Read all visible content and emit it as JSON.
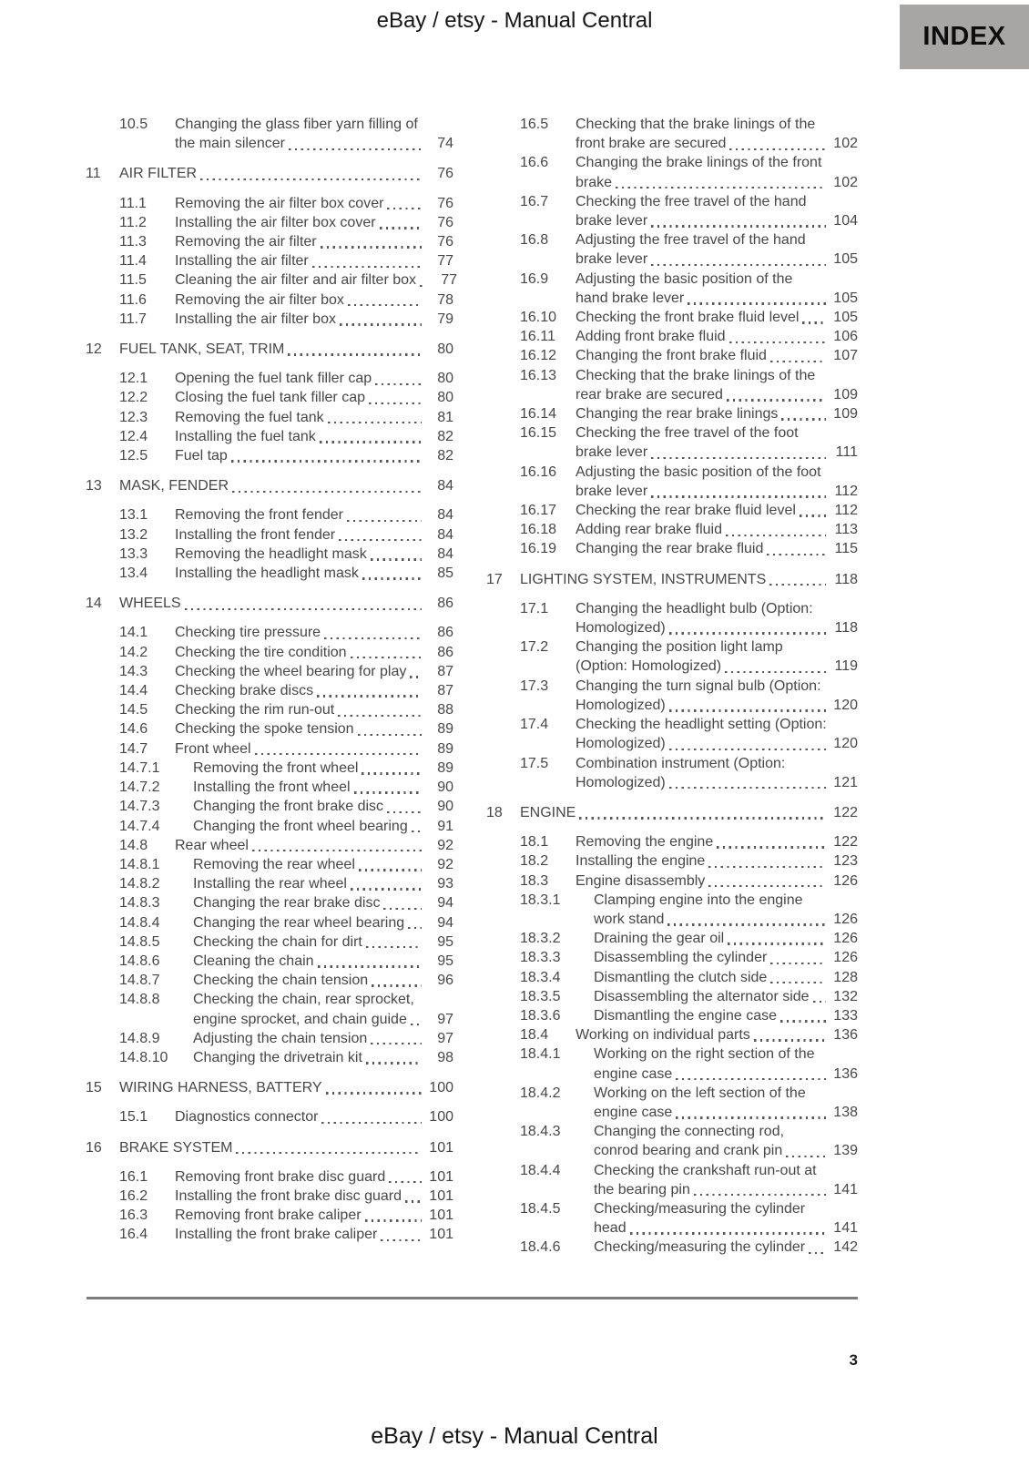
{
  "header": {
    "title": "eBay / etsy - Manual Central",
    "index_label": "INDEX"
  },
  "footer": {
    "page_number": "3",
    "title": "eBay / etsy - Manual Central"
  },
  "colors": {
    "index_tab_bg": "#a8a6a4",
    "body_text": "#474747",
    "divider": "#7d7d7d"
  },
  "toc": {
    "left": [
      {
        "num": "10.5",
        "level": 2,
        "lines": [
          "Changing the glass fiber yarn filling of",
          "the main silencer"
        ],
        "page": "74"
      },
      {
        "num": "11",
        "level": 1,
        "lines": [
          "AIR FILTER"
        ],
        "page": "76"
      },
      {
        "num": "11.1",
        "level": 2,
        "lines": [
          "Removing the air filter box cover"
        ],
        "page": "76"
      },
      {
        "num": "11.2",
        "level": 2,
        "lines": [
          "Installing the air filter box cover"
        ],
        "page": "76"
      },
      {
        "num": "11.3",
        "level": 2,
        "lines": [
          "Removing the air filter"
        ],
        "page": "76"
      },
      {
        "num": "11.4",
        "level": 2,
        "lines": [
          "Installing the air filter"
        ],
        "page": "77"
      },
      {
        "num": "11.5",
        "level": 2,
        "lines": [
          "Cleaning the air filter and air filter box"
        ],
        "page": "77"
      },
      {
        "num": "11.6",
        "level": 2,
        "lines": [
          "Removing the air filter box"
        ],
        "page": "78"
      },
      {
        "num": "11.7",
        "level": 2,
        "lines": [
          "Installing the air filter box"
        ],
        "page": "79"
      },
      {
        "num": "12",
        "level": 1,
        "lines": [
          "FUEL TANK, SEAT, TRIM"
        ],
        "page": "80"
      },
      {
        "num": "12.1",
        "level": 2,
        "lines": [
          "Opening the fuel tank filler cap"
        ],
        "page": "80"
      },
      {
        "num": "12.2",
        "level": 2,
        "lines": [
          "Closing the fuel tank filler cap"
        ],
        "page": "80"
      },
      {
        "num": "12.3",
        "level": 2,
        "lines": [
          "Removing the fuel tank"
        ],
        "page": "81"
      },
      {
        "num": "12.4",
        "level": 2,
        "lines": [
          "Installing the fuel tank"
        ],
        "page": "82"
      },
      {
        "num": "12.5",
        "level": 2,
        "lines": [
          "Fuel tap"
        ],
        "page": "82"
      },
      {
        "num": "13",
        "level": 1,
        "lines": [
          "MASK, FENDER"
        ],
        "page": "84"
      },
      {
        "num": "13.1",
        "level": 2,
        "lines": [
          "Removing the front fender"
        ],
        "page": "84"
      },
      {
        "num": "13.2",
        "level": 2,
        "lines": [
          "Installing the front fender"
        ],
        "page": "84"
      },
      {
        "num": "13.3",
        "level": 2,
        "lines": [
          "Removing the headlight mask"
        ],
        "page": "84"
      },
      {
        "num": "13.4",
        "level": 2,
        "lines": [
          "Installing the headlight mask"
        ],
        "page": "85"
      },
      {
        "num": "14",
        "level": 1,
        "lines": [
          "WHEELS"
        ],
        "page": "86"
      },
      {
        "num": "14.1",
        "level": 2,
        "lines": [
          "Checking tire pressure"
        ],
        "page": "86"
      },
      {
        "num": "14.2",
        "level": 2,
        "lines": [
          "Checking the tire condition"
        ],
        "page": "86"
      },
      {
        "num": "14.3",
        "level": 2,
        "lines": [
          "Checking the wheel bearing for play"
        ],
        "page": "87"
      },
      {
        "num": "14.4",
        "level": 2,
        "lines": [
          "Checking brake discs"
        ],
        "page": "87"
      },
      {
        "num": "14.5",
        "level": 2,
        "lines": [
          "Checking the rim run-out"
        ],
        "page": "88"
      },
      {
        "num": "14.6",
        "level": 2,
        "lines": [
          "Checking the spoke tension"
        ],
        "page": "89"
      },
      {
        "num": "14.7",
        "level": 2,
        "lines": [
          "Front wheel"
        ],
        "page": "89"
      },
      {
        "num": "14.7.1",
        "level": 3,
        "lines": [
          "Removing the front wheel"
        ],
        "page": "89"
      },
      {
        "num": "14.7.2",
        "level": 3,
        "lines": [
          "Installing the front wheel"
        ],
        "page": "90"
      },
      {
        "num": "14.7.3",
        "level": 3,
        "lines": [
          "Changing the front brake disc"
        ],
        "page": "90"
      },
      {
        "num": "14.7.4",
        "level": 3,
        "lines": [
          "Changing the front wheel bearing"
        ],
        "page": "91"
      },
      {
        "num": "14.8",
        "level": 2,
        "lines": [
          "Rear wheel"
        ],
        "page": "92"
      },
      {
        "num": "14.8.1",
        "level": 3,
        "lines": [
          "Removing the rear wheel"
        ],
        "page": "92"
      },
      {
        "num": "14.8.2",
        "level": 3,
        "lines": [
          "Installing the rear wheel"
        ],
        "page": "93"
      },
      {
        "num": "14.8.3",
        "level": 3,
        "lines": [
          "Changing the rear brake disc"
        ],
        "page": "94"
      },
      {
        "num": "14.8.4",
        "level": 3,
        "lines": [
          "Changing the rear wheel bearing"
        ],
        "page": "94"
      },
      {
        "num": "14.8.5",
        "level": 3,
        "lines": [
          "Checking the chain for dirt"
        ],
        "page": "95"
      },
      {
        "num": "14.8.6",
        "level": 3,
        "lines": [
          "Cleaning the chain"
        ],
        "page": "95"
      },
      {
        "num": "14.8.7",
        "level": 3,
        "lines": [
          "Checking the chain tension"
        ],
        "page": "96"
      },
      {
        "num": "14.8.8",
        "level": 3,
        "lines": [
          "Checking the chain, rear sprocket,",
          "engine sprocket, and chain guide"
        ],
        "page": "97"
      },
      {
        "num": "14.8.9",
        "level": 3,
        "lines": [
          "Adjusting the chain tension"
        ],
        "page": "97"
      },
      {
        "num": "14.8.10",
        "level": 3,
        "lines": [
          "Changing the drivetrain kit"
        ],
        "page": "98"
      },
      {
        "num": "15",
        "level": 1,
        "lines": [
          "WIRING HARNESS, BATTERY"
        ],
        "page": "100"
      },
      {
        "num": "15.1",
        "level": 2,
        "lines": [
          "Diagnostics connector"
        ],
        "page": "100"
      },
      {
        "num": "16",
        "level": 1,
        "lines": [
          "BRAKE SYSTEM"
        ],
        "page": "101"
      },
      {
        "num": "16.1",
        "level": 2,
        "lines": [
          "Removing front brake disc guard"
        ],
        "page": "101"
      },
      {
        "num": "16.2",
        "level": 2,
        "lines": [
          "Installing the front brake disc guard"
        ],
        "page": "101"
      },
      {
        "num": "16.3",
        "level": 2,
        "lines": [
          "Removing front brake caliper"
        ],
        "page": "101"
      },
      {
        "num": "16.4",
        "level": 2,
        "lines": [
          "Installing the front brake caliper"
        ],
        "page": "101"
      }
    ],
    "right": [
      {
        "num": "16.5",
        "level": 2,
        "lines": [
          "Checking that the brake linings of the",
          "front brake are secured"
        ],
        "page": "102"
      },
      {
        "num": "16.6",
        "level": 2,
        "lines": [
          "Changing the brake linings of the front",
          "brake"
        ],
        "page": "102"
      },
      {
        "num": "16.7",
        "level": 2,
        "lines": [
          "Checking the free travel of the hand",
          "brake lever"
        ],
        "page": "104"
      },
      {
        "num": "16.8",
        "level": 2,
        "lines": [
          "Adjusting the free travel of the hand",
          "brake lever"
        ],
        "page": "105"
      },
      {
        "num": "16.9",
        "level": 2,
        "lines": [
          "Adjusting the basic position of the",
          "hand brake lever"
        ],
        "page": "105"
      },
      {
        "num": "16.10",
        "level": 2,
        "lines": [
          "Checking the front brake fluid level"
        ],
        "page": "105"
      },
      {
        "num": "16.11",
        "level": 2,
        "lines": [
          "Adding front brake fluid"
        ],
        "page": "106"
      },
      {
        "num": "16.12",
        "level": 2,
        "lines": [
          "Changing the front brake fluid"
        ],
        "page": "107"
      },
      {
        "num": "16.13",
        "level": 2,
        "lines": [
          "Checking that the brake linings of the",
          "rear brake are secured"
        ],
        "page": "109"
      },
      {
        "num": "16.14",
        "level": 2,
        "lines": [
          "Changing the rear brake linings"
        ],
        "page": "109"
      },
      {
        "num": "16.15",
        "level": 2,
        "lines": [
          "Checking the free travel of the foot",
          "brake lever"
        ],
        "page": "111"
      },
      {
        "num": "16.16",
        "level": 2,
        "lines": [
          "Adjusting the basic position of the foot",
          "brake lever"
        ],
        "page": "112"
      },
      {
        "num": "16.17",
        "level": 2,
        "lines": [
          "Checking the rear brake fluid level"
        ],
        "page": "112"
      },
      {
        "num": "16.18",
        "level": 2,
        "lines": [
          "Adding rear brake fluid"
        ],
        "page": "113"
      },
      {
        "num": "16.19",
        "level": 2,
        "lines": [
          "Changing the rear brake fluid"
        ],
        "page": "115"
      },
      {
        "num": "17",
        "level": 1,
        "lines": [
          "LIGHTING SYSTEM, INSTRUMENTS"
        ],
        "page": "118"
      },
      {
        "num": "17.1",
        "level": 2,
        "lines": [
          "Changing the headlight bulb (Option:",
          "Homologized)"
        ],
        "page": "118"
      },
      {
        "num": "17.2",
        "level": 2,
        "lines": [
          "Changing the position light lamp",
          "(Option: Homologized)"
        ],
        "page": "119"
      },
      {
        "num": "17.3",
        "level": 2,
        "lines": [
          "Changing the turn signal bulb (Option:",
          "Homologized)"
        ],
        "page": "120"
      },
      {
        "num": "17.4",
        "level": 2,
        "lines": [
          "Checking the headlight setting (Option:",
          "Homologized)"
        ],
        "page": "120"
      },
      {
        "num": "17.5",
        "level": 2,
        "lines": [
          "Combination instrument (Option:",
          "Homologized)"
        ],
        "page": "121"
      },
      {
        "num": "18",
        "level": 1,
        "lines": [
          "ENGINE"
        ],
        "page": "122"
      },
      {
        "num": "18.1",
        "level": 2,
        "lines": [
          "Removing the engine"
        ],
        "page": "122"
      },
      {
        "num": "18.2",
        "level": 2,
        "lines": [
          "Installing the engine"
        ],
        "page": "123"
      },
      {
        "num": "18.3",
        "level": 2,
        "lines": [
          "Engine disassembly"
        ],
        "page": "126"
      },
      {
        "num": "18.3.1",
        "level": 3,
        "lines": [
          "Clamping engine into the engine",
          "work stand"
        ],
        "page": "126"
      },
      {
        "num": "18.3.2",
        "level": 3,
        "lines": [
          "Draining the gear oil"
        ],
        "page": "126"
      },
      {
        "num": "18.3.3",
        "level": 3,
        "lines": [
          "Disassembling the cylinder"
        ],
        "page": "126"
      },
      {
        "num": "18.3.4",
        "level": 3,
        "lines": [
          "Dismantling the clutch side"
        ],
        "page": "128"
      },
      {
        "num": "18.3.5",
        "level": 3,
        "lines": [
          "Disassembling the alternator side"
        ],
        "page": "132"
      },
      {
        "num": "18.3.6",
        "level": 3,
        "lines": [
          "Dismantling the engine case"
        ],
        "page": "133"
      },
      {
        "num": "18.4",
        "level": 2,
        "lines": [
          "Working on individual parts"
        ],
        "page": "136"
      },
      {
        "num": "18.4.1",
        "level": 3,
        "lines": [
          "Working on the right section of the",
          "engine case"
        ],
        "page": "136"
      },
      {
        "num": "18.4.2",
        "level": 3,
        "lines": [
          "Working on the left section of the",
          "engine case"
        ],
        "page": "138"
      },
      {
        "num": "18.4.3",
        "level": 3,
        "lines": [
          "Changing the connecting rod,",
          "conrod bearing and crank pin"
        ],
        "page": "139"
      },
      {
        "num": "18.4.4",
        "level": 3,
        "lines": [
          "Checking the crankshaft run-out at",
          "the bearing pin"
        ],
        "page": "141"
      },
      {
        "num": "18.4.5",
        "level": 3,
        "lines": [
          "Checking/measuring the cylinder",
          "head"
        ],
        "page": "141"
      },
      {
        "num": "18.4.6",
        "level": 3,
        "lines": [
          "Checking/measuring the cylinder"
        ],
        "page": "142"
      }
    ]
  }
}
